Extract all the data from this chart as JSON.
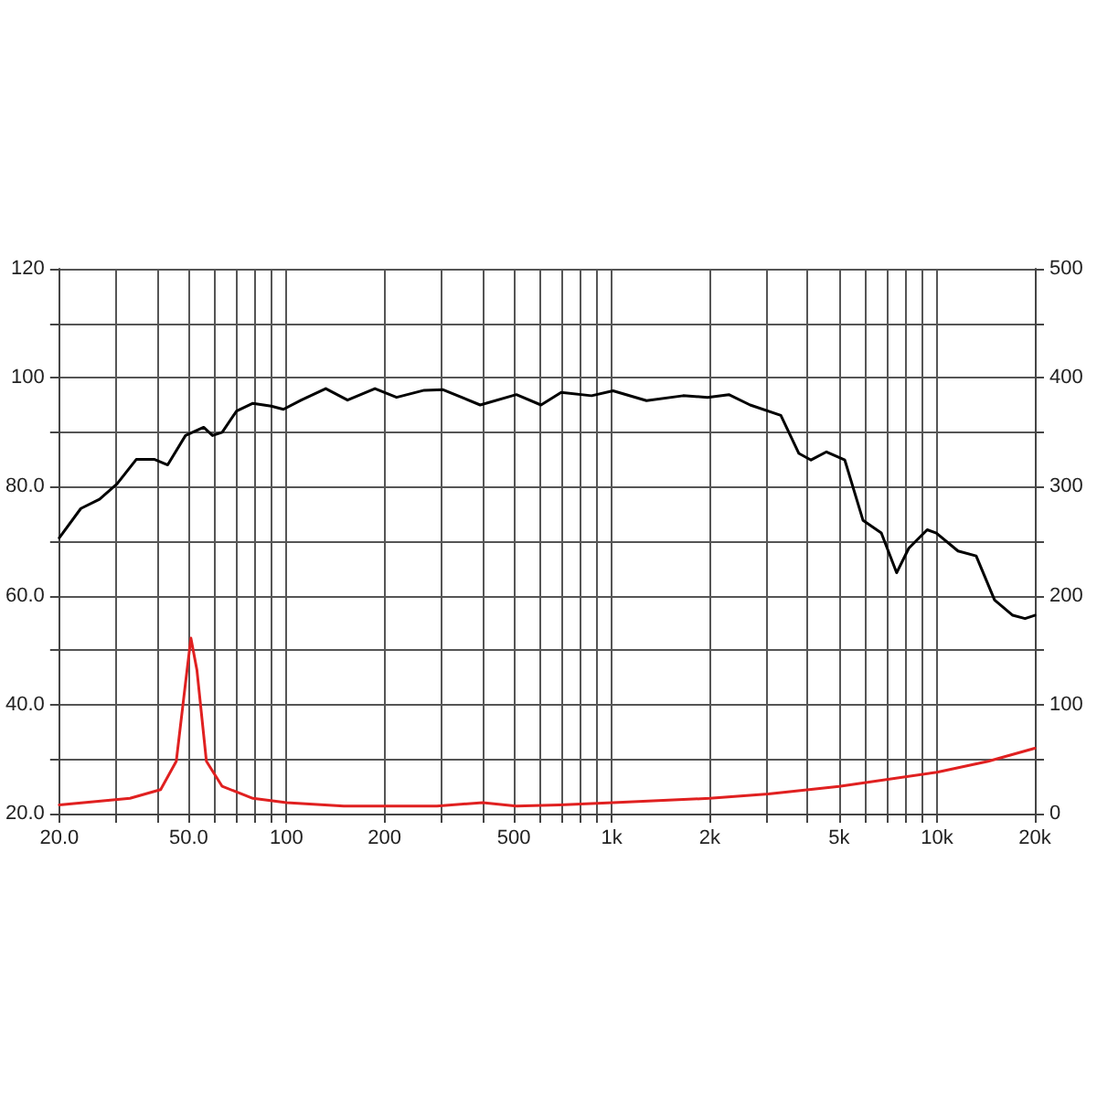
{
  "chart_data": {
    "type": "line",
    "log": "x",
    "grid": true,
    "marker": "none",
    "line_style": "solid",
    "xlim": [
      20,
      20000
    ],
    "xticks": [
      {
        "value": 20,
        "label": "20.0"
      },
      {
        "value": 30,
        "label": null
      },
      {
        "value": 40,
        "label": null
      },
      {
        "value": 50,
        "label": "50.0"
      },
      {
        "value": 60,
        "label": null
      },
      {
        "value": 70,
        "label": null
      },
      {
        "value": 80,
        "label": null
      },
      {
        "value": 90,
        "label": null
      },
      {
        "value": 100,
        "label": "100"
      },
      {
        "value": 200,
        "label": "200"
      },
      {
        "value": 300,
        "label": null
      },
      {
        "value": 400,
        "label": null
      },
      {
        "value": 500,
        "label": "500"
      },
      {
        "value": 600,
        "label": null
      },
      {
        "value": 700,
        "label": null
      },
      {
        "value": 800,
        "label": null
      },
      {
        "value": 900,
        "label": null
      },
      {
        "value": 1000,
        "label": "1k"
      },
      {
        "value": 2000,
        "label": "2k"
      },
      {
        "value": 3000,
        "label": null
      },
      {
        "value": 4000,
        "label": null
      },
      {
        "value": 5000,
        "label": "5k"
      },
      {
        "value": 6000,
        "label": null
      },
      {
        "value": 7000,
        "label": null
      },
      {
        "value": 8000,
        "label": null
      },
      {
        "value": 9000,
        "label": null
      },
      {
        "value": 10000,
        "label": "10k"
      },
      {
        "value": 20000,
        "label": "20k"
      }
    ],
    "ylim": [
      20,
      120
    ],
    "yticks": [
      {
        "value": 20,
        "label": "20.0"
      },
      {
        "value": 30,
        "label": null
      },
      {
        "value": 40,
        "label": "40.0"
      },
      {
        "value": 50,
        "label": null
      },
      {
        "value": 60,
        "label": "60.0"
      },
      {
        "value": 70,
        "label": null
      },
      {
        "value": 80,
        "label": "80.0"
      },
      {
        "value": 90,
        "label": null
      },
      100,
      {
        "value": 110,
        "label": null
      },
      120
    ],
    "y2lim": [
      0,
      500
    ],
    "y2ticks": [
      0,
      {
        "value": 50,
        "label": null
      },
      100,
      {
        "value": 150,
        "label": null
      },
      200,
      {
        "value": 250,
        "label": null
      },
      300,
      {
        "value": 350,
        "label": null
      },
      400,
      {
        "value": 450,
        "label": null
      },
      500
    ],
    "series": [
      {
        "color": "#000000",
        "x": [
          20,
          23.3,
          26.6,
          30.1,
          34.5,
          39.3,
          43.1,
          48.9,
          55.6,
          59.2,
          63.4,
          70.2,
          78.8,
          89.7,
          97.8,
          111,
          132,
          154,
          187,
          218,
          265,
          303,
          394,
          509,
          606,
          699,
          867,
          1009,
          1279,
          1658,
          1971,
          2291,
          2664,
          3311,
          3763,
          4100,
          4574,
          5207,
          5927,
          6744,
          7517,
          8192,
          9334,
          9958,
          11610,
          13200,
          15040,
          17100,
          18660,
          20000
        ],
        "values": [
          70.6,
          76,
          77.7,
          80.5,
          85,
          85,
          84,
          89.4,
          90.9,
          89.4,
          90,
          93.9,
          95.3,
          94.8,
          94.2,
          95.9,
          98,
          95.9,
          98,
          96.4,
          97.7,
          97.8,
          95,
          96.9,
          95,
          97.3,
          96.7,
          97.6,
          95.8,
          96.7,
          96.4,
          96.9,
          95,
          93.1,
          86.1,
          84.9,
          86.4,
          84.9,
          73.8,
          71.5,
          64.2,
          68.7,
          72.1,
          71.5,
          68.2,
          67.3,
          59.2,
          56.4,
          55.8,
          56.4
        ]
      },
      {
        "color": "#e02020",
        "axis": "y2",
        "x": [
          20,
          33,
          41,
          45.8,
          48.9,
          50.8,
          53,
          56.7,
          63.4,
          78.8,
          100,
          150,
          290,
          401,
          509,
          690,
          1009,
          2000,
          3030,
          5000,
          10000,
          14380,
          20000
        ],
        "values": [
          8,
          14,
          22,
          48,
          120,
          161,
          132,
          48,
          25,
          14,
          10,
          7,
          7,
          10,
          7,
          8,
          10,
          14,
          18,
          25,
          38,
          48,
          60
        ]
      }
    ]
  }
}
